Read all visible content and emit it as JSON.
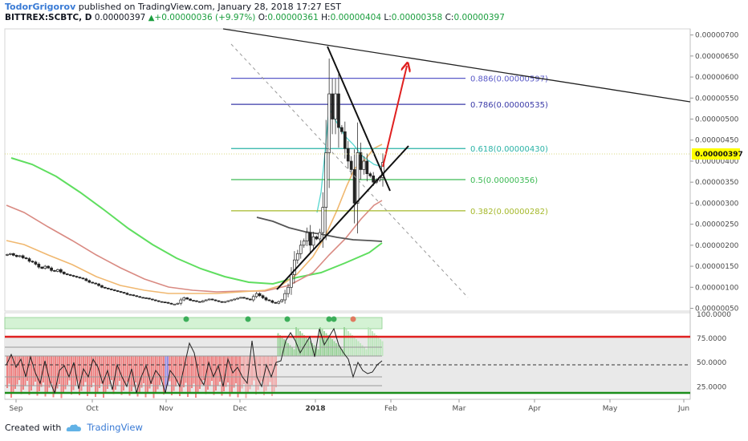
{
  "header": {
    "author": "TodorGrigorov",
    "published_text": " published on TradingView.com, January 28, 2018 17:27 EST",
    "symbol": "BITTREX:SCBTC, D",
    "last": "0.00000397",
    "change": "+0.00000036 (+9.97%)",
    "open_label": "O:",
    "open": "0.00000361",
    "high_label": "H:",
    "high": "0.00000404",
    "low_label": "L:",
    "low": "0.00000358",
    "close_label": "C:",
    "close": "0.00000397"
  },
  "footer": {
    "created_with": "Created with",
    "brand": "TradingView"
  },
  "colors": {
    "up": "#53b987",
    "down": "#eb4d5c",
    "accent": "#3a7bd5",
    "fib_886": "#5a5ac8",
    "fib_786": "#3a3aa8",
    "fib_618": "#2ab3a6",
    "fib_5": "#3cba54",
    "fib_382": "#a5b82a",
    "arrow": "#e02020",
    "price_badge": "#ffff00"
  },
  "chart_data": {
    "type": "candlestick",
    "x_axis_labels": [
      "Sep",
      "Oct",
      "Nov",
      "Dec",
      "2018",
      "Feb",
      "Mar",
      "Apr",
      "May",
      "Jun"
    ],
    "y_axis_labels": [
      "0.00000700",
      "0.00000650",
      "0.00000600",
      "0.00000550",
      "0.00000500",
      "0.00000450",
      "0.00000400",
      "0.00000350",
      "0.00000300",
      "0.00000250",
      "0.00000200",
      "0.00000150",
      "0.00000100",
      "0.00000050"
    ],
    "y_range": [
      3e-07,
      7.05e-06
    ],
    "current_price": "0.00000397",
    "fibonacci_levels": [
      {
        "label": "0.886(0.00000597)",
        "value": 5.97e-06
      },
      {
        "label": "0.786(0.00000535)",
        "value": 5.35e-06
      },
      {
        "label": "0.618(0.00000430)",
        "value": 4.3e-06
      },
      {
        "label": "0.5(0.00000356)",
        "value": 3.56e-06
      },
      {
        "label": "0.382(0.00000282)",
        "value": 2.82e-06
      }
    ],
    "close_series": [
      1.78e-06,
      1.8e-06,
      1.76e-06,
      1.73e-06,
      1.75e-06,
      1.7e-06,
      1.68e-06,
      1.62e-06,
      1.6e-06,
      1.55e-06,
      1.48e-06,
      1.45e-06,
      1.5e-06,
      1.46e-06,
      1.4e-06,
      1.38e-06,
      1.42e-06,
      1.36e-06,
      1.32e-06,
      1.3e-06,
      1.28e-06,
      1.26e-06,
      1.24e-06,
      1.22e-06,
      1.2e-06,
      1.16e-06,
      1.12e-06,
      1.1e-06,
      1.08e-06,
      1.04e-06,
      1e-06,
      9.8e-07,
      9.6e-07,
      9.4e-07,
      9.2e-07,
      9e-07,
      8.8e-07,
      8.6e-07,
      8.3e-07,
      8.2e-07,
      8e-07,
      7.8e-07,
      7.6e-07,
      7.5e-07,
      7.4e-07,
      7.2e-07,
      7e-07,
      6.8e-07,
      6.6e-07,
      6.5e-07,
      6.4e-07,
      6.2e-07,
      6e-07,
      6e-07,
      6.2e-07,
      7e-07,
      7.5e-07,
      7.2e-07,
      6.9e-07,
      6.8e-07,
      6.6e-07,
      6.5e-07,
      6.8e-07,
      7e-07,
      7.2e-07,
      7e-07,
      6.8e-07,
      6.6e-07,
      6.4e-07,
      6.6e-07,
      6.8e-07,
      7e-07,
      7.2e-07,
      7.4e-07,
      7.6e-07,
      7.4e-07,
      7.2e-07,
      7e-07,
      7.8e-07,
      8.5e-07,
      8e-07,
      7.5e-07,
      7e-07,
      6.8e-07,
      6.4e-07,
      6.2e-07,
      6.6e-07,
      7e-07,
      8.5e-07,
      1e-06,
      1.3e-06,
      1.65e-06,
      1.8e-06,
      2e-06,
      2.1e-06,
      2.3e-06,
      2e-06,
      2.2e-06,
      2.15e-06,
      2.3e-06,
      2.9e-06,
      4.2e-06,
      5.6e-06,
      5e-06,
      5.6e-06,
      4.8e-06,
      4.7e-06,
      4.3e-06,
      4e-06,
      3.8e-06,
      3e-06,
      4.2e-06,
      3.8e-06,
      4e-06,
      3.7e-06,
      3.65e-06,
      3.5e-06,
      3.55e-06,
      3.61e-06,
      3.97e-06
    ],
    "oscillator": {
      "y_axis_labels": [
        "100.0000",
        "75.0000",
        "50.0000",
        "25.0000"
      ],
      "y_range": [
        12,
        100
      ],
      "upper_line": 80,
      "lower_line": 20,
      "mid_line": 50
    }
  }
}
